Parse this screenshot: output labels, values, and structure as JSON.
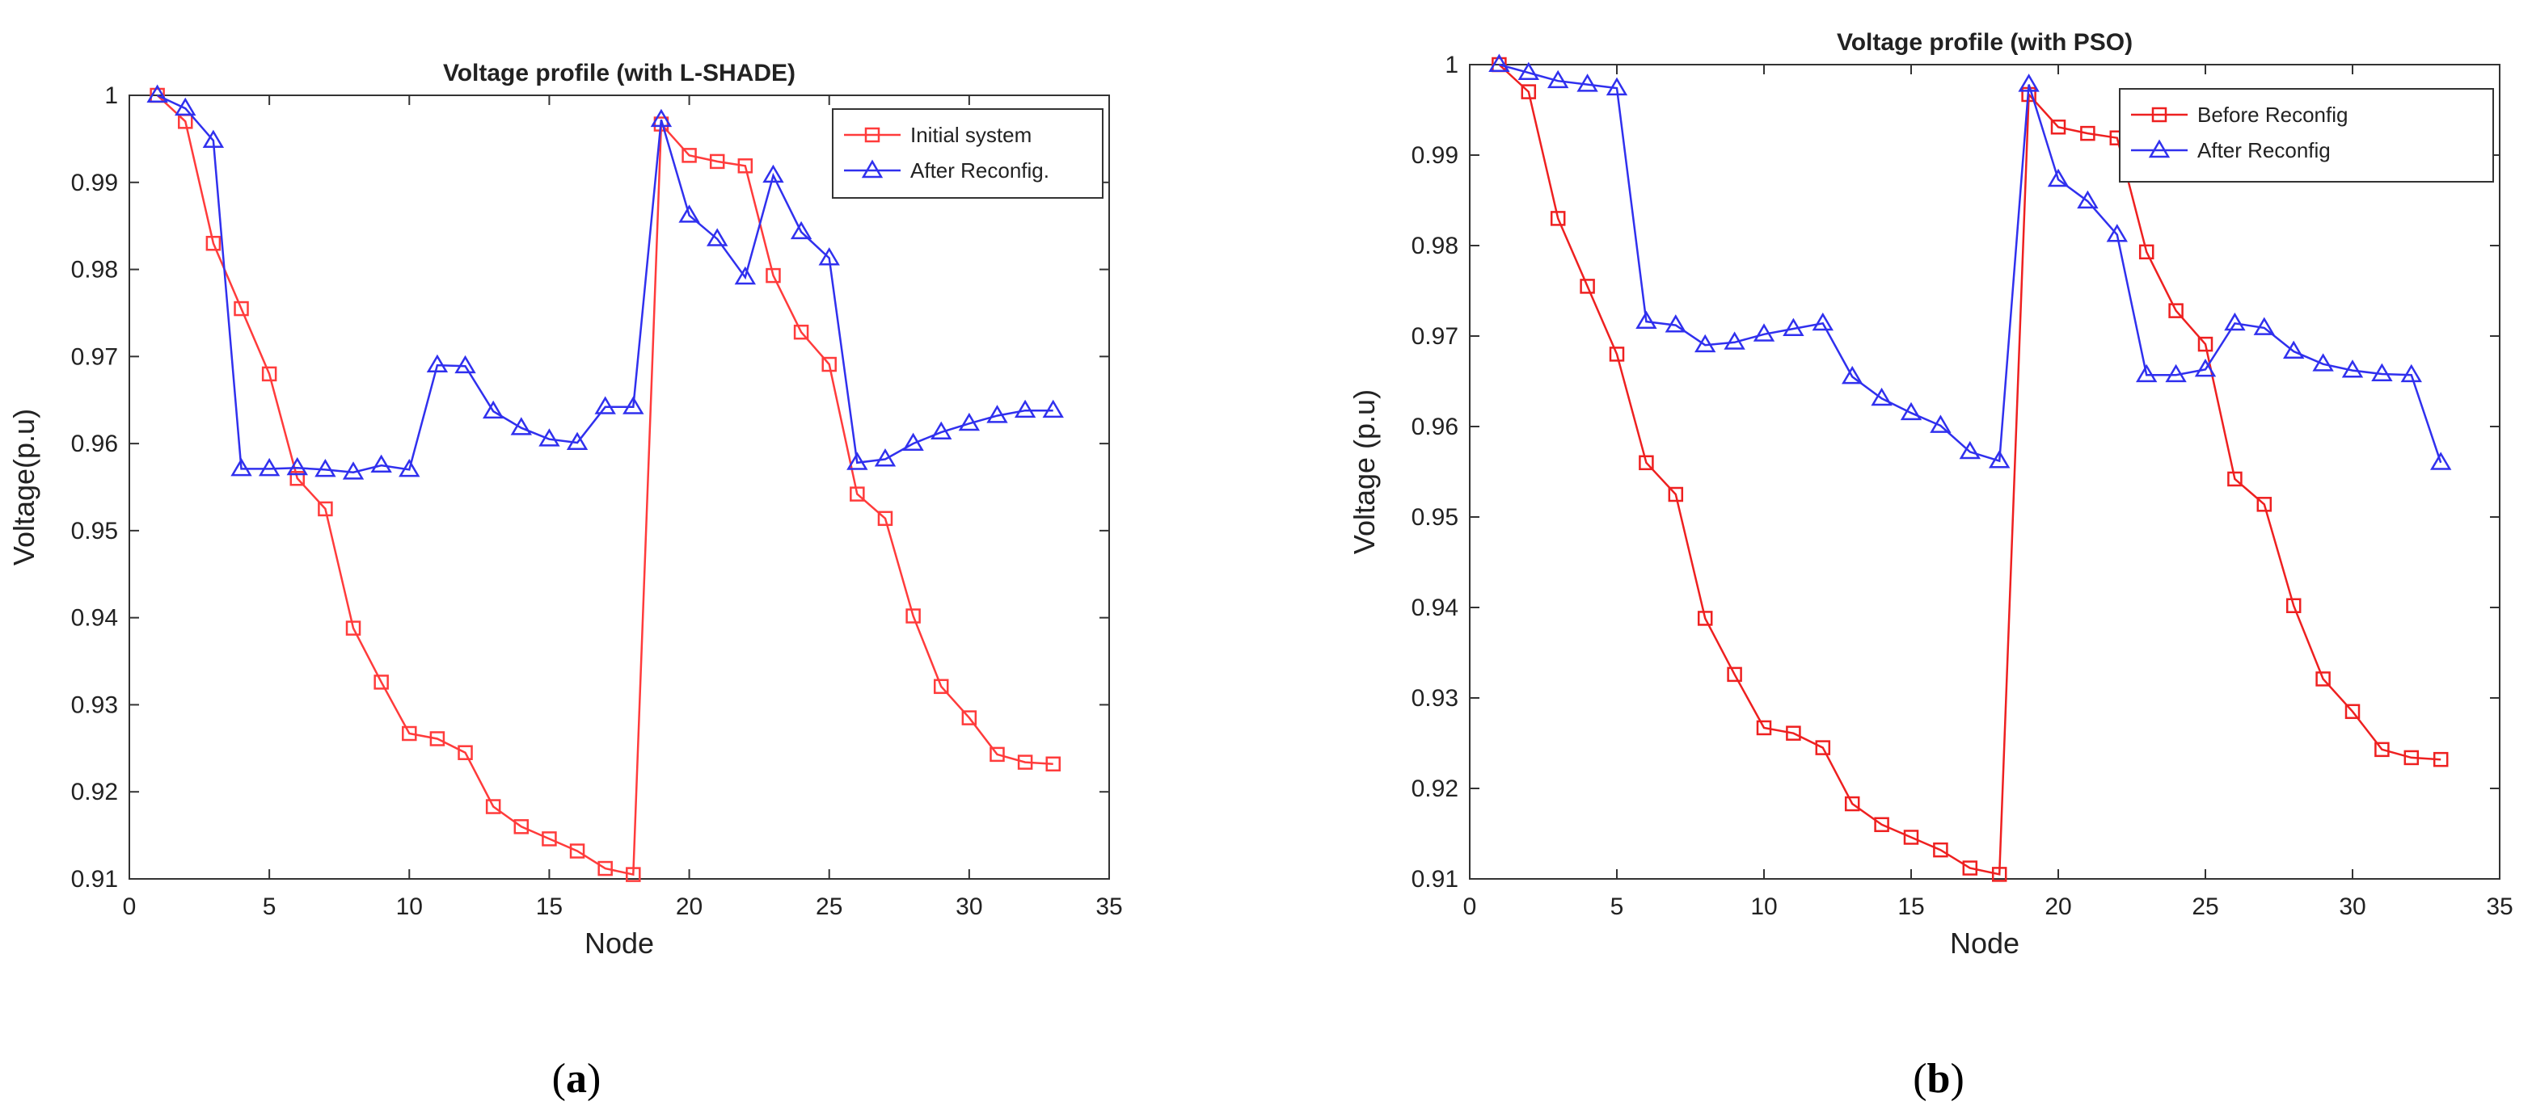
{
  "chart_data": [
    {
      "type": "line",
      "title": "Voltage profile (with L-SHADE)",
      "xlabel": "Node",
      "ylabel": "Voltage(p.u)",
      "xlim": [
        0,
        35
      ],
      "ylim": [
        0.91,
        1.0
      ],
      "xticks": [
        "0",
        "5",
        "10",
        "15",
        "20",
        "25",
        "30",
        "35"
      ],
      "yticks": [
        "0.91",
        "0.92",
        "0.93",
        "0.94",
        "0.95",
        "0.96",
        "0.97",
        "0.98",
        "0.99",
        "1"
      ],
      "grid": false,
      "legend_position": "top-right",
      "caption_letter": "a",
      "series": [
        {
          "name": "Initial system",
          "color": "#ff3b3b",
          "marker": "square",
          "x": [
            1,
            2,
            3,
            4,
            5,
            6,
            7,
            8,
            9,
            10,
            11,
            12,
            13,
            14,
            15,
            16,
            17,
            18,
            19,
            20,
            21,
            22,
            23,
            24,
            25,
            26,
            27,
            28,
            29,
            30,
            31,
            32,
            33
          ],
          "y": [
            1.0,
            0.997,
            0.983,
            0.9755,
            0.968,
            0.956,
            0.9525,
            0.9388,
            0.9326,
            0.9267,
            0.9261,
            0.9245,
            0.9183,
            0.916,
            0.9146,
            0.9132,
            0.9112,
            0.9105,
            0.9967,
            0.9931,
            0.9924,
            0.9919,
            0.9793,
            0.9728,
            0.9691,
            0.9542,
            0.9514,
            0.9402,
            0.9321,
            0.9285,
            0.9243,
            0.9234,
            0.9232
          ]
        },
        {
          "name": "After Reconfig.",
          "color": "#3030ee",
          "marker": "triangle",
          "x": [
            1,
            2,
            3,
            4,
            5,
            6,
            7,
            8,
            9,
            10,
            11,
            12,
            13,
            14,
            15,
            16,
            17,
            18,
            19,
            20,
            21,
            22,
            23,
            24,
            25,
            26,
            27,
            28,
            29,
            30,
            31,
            32,
            33
          ],
          "y": [
            1.0,
            0.9985,
            0.9948,
            0.9571,
            0.9571,
            0.9572,
            0.957,
            0.9567,
            0.9575,
            0.957,
            0.969,
            0.9689,
            0.9637,
            0.9618,
            0.9605,
            0.9601,
            0.9642,
            0.9642,
            0.9972,
            0.9862,
            0.9835,
            0.9791,
            0.9908,
            0.9843,
            0.9813,
            0.9578,
            0.9582,
            0.96,
            0.9613,
            0.9623,
            0.9632,
            0.9638,
            0.9638
          ]
        }
      ]
    },
    {
      "type": "line",
      "title": "Voltage profile (with PSO)",
      "xlabel": "Node",
      "ylabel": "Voltage (p.u)",
      "xlim": [
        0,
        35
      ],
      "ylim": [
        0.91,
        1.0
      ],
      "xticks": [
        "0",
        "5",
        "10",
        "15",
        "20",
        "25",
        "30",
        "35"
      ],
      "yticks": [
        "0.91",
        "0.92",
        "0.93",
        "0.94",
        "0.95",
        "0.96",
        "0.97",
        "0.98",
        "0.99",
        "1"
      ],
      "grid": false,
      "legend_position": "top-right",
      "caption_letter": "b",
      "series": [
        {
          "name": "Before Reconfig",
          "color": "#ee2020",
          "marker": "square",
          "x": [
            1,
            2,
            3,
            4,
            5,
            6,
            7,
            8,
            9,
            10,
            11,
            12,
            13,
            14,
            15,
            16,
            17,
            18,
            19,
            20,
            21,
            22,
            23,
            24,
            25,
            26,
            27,
            28,
            29,
            30,
            31,
            32,
            33
          ],
          "y": [
            1.0,
            0.997,
            0.983,
            0.9755,
            0.968,
            0.956,
            0.9525,
            0.9388,
            0.9326,
            0.9267,
            0.9261,
            0.9245,
            0.9183,
            0.916,
            0.9146,
            0.9132,
            0.9112,
            0.9105,
            0.9967,
            0.9931,
            0.9924,
            0.9919,
            0.9793,
            0.9728,
            0.9691,
            0.9542,
            0.9514,
            0.9402,
            0.9321,
            0.9285,
            0.9243,
            0.9234,
            0.9232
          ]
        },
        {
          "name": "After Reconfig",
          "color": "#3030ee",
          "marker": "triangle",
          "x": [
            1,
            2,
            3,
            4,
            5,
            6,
            7,
            8,
            9,
            10,
            11,
            12,
            13,
            14,
            15,
            16,
            17,
            18,
            19,
            20,
            21,
            22,
            23,
            24,
            25,
            26,
            27,
            28,
            29,
            30,
            31,
            32,
            33
          ],
          "y": [
            1.0,
            0.9991,
            0.9982,
            0.9978,
            0.9974,
            0.9716,
            0.9712,
            0.969,
            0.9693,
            0.9702,
            0.9708,
            0.9714,
            0.9655,
            0.9631,
            0.9615,
            0.9601,
            0.9572,
            0.9562,
            0.9978,
            0.9873,
            0.9849,
            0.9812,
            0.9657,
            0.9657,
            0.9663,
            0.9714,
            0.9709,
            0.9683,
            0.9669,
            0.9662,
            0.9658,
            0.9657,
            0.956
          ]
        }
      ]
    }
  ]
}
